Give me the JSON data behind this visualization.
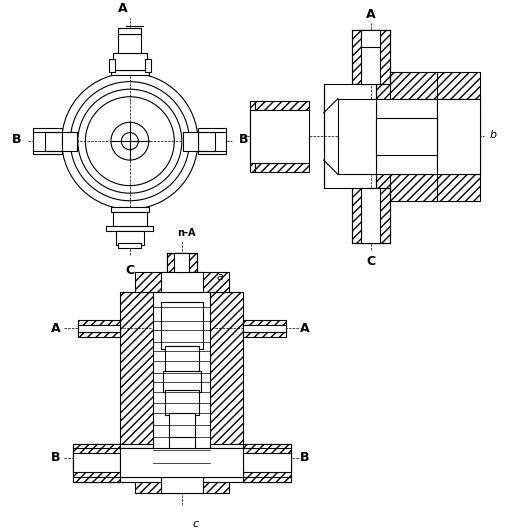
{
  "bg_color": "#ffffff",
  "line_color": "#000000",
  "hatch_pattern": "////",
  "label_a": "A",
  "label_b": "B",
  "label_c": "C",
  "label_nA": "n-A",
  "sub_a": "a",
  "sub_b": "b",
  "sub_c": "c",
  "fig_width": 5.21,
  "fig_height": 5.29,
  "dpi": 100
}
